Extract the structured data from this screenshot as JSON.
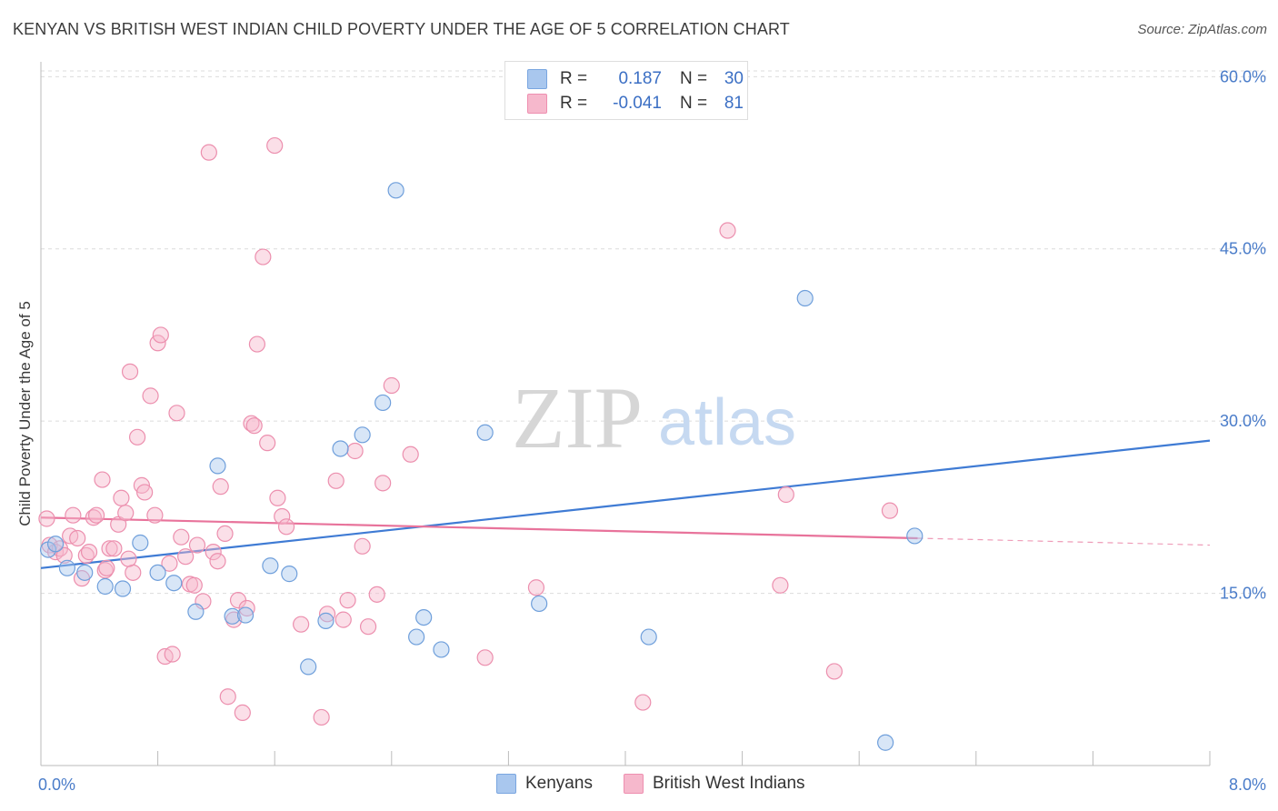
{
  "header": {
    "title": "KENYAN VS BRITISH WEST INDIAN CHILD POVERTY UNDER THE AGE OF 5 CORRELATION CHART",
    "source": "Source: ZipAtlas.com"
  },
  "watermark": {
    "zip": "ZIP",
    "atlas": "atlas"
  },
  "stats_legend": {
    "rows": [
      {
        "r_label": "R =",
        "r_value": "0.187",
        "n_label": "N =",
        "n_value": "30",
        "color": "#a9c7ee",
        "border": "#7aa6e0"
      },
      {
        "r_label": "R =",
        "r_value": "-0.041",
        "n_label": "N =",
        "n_value": "81",
        "color": "#f6b8cc",
        "border": "#ee8fb0"
      }
    ]
  },
  "colors": {
    "kenyans_fill": "#a9c7ee",
    "kenyans_stroke": "#6f9fdb",
    "kenyans_line": "#3f7bd4",
    "bwi_fill": "#f6b8cc",
    "bwi_stroke": "#ec8fae",
    "bwi_line": "#e8739b",
    "tick_text": "#4a7cc9",
    "grid": "#dcdcdc"
  },
  "chart_data": {
    "type": "scatter",
    "ylabel": "Child Poverty Under the Age of 5",
    "xlim": [
      0,
      8.0
    ],
    "ylim": [
      0,
      60.5
    ],
    "x_ticks": [
      {
        "value": 0,
        "label": "0.0%"
      },
      {
        "value": 8.0,
        "label": "8.0%"
      }
    ],
    "x_minor_ticks": [
      0.8,
      1.6,
      2.4,
      3.2,
      4.0,
      4.8,
      5.6,
      6.4,
      7.2,
      8.0
    ],
    "y_ticks": [
      {
        "value": 15,
        "label": "15.0%"
      },
      {
        "value": 30,
        "label": "30.0%"
      },
      {
        "value": 45,
        "label": "45.0%"
      },
      {
        "value": 60,
        "label": "60.0%"
      }
    ],
    "grid": true,
    "legend_position": "bottom",
    "series": [
      {
        "name": "Kenyans",
        "color": "#a9c7ee",
        "points": [
          [
            0.05,
            18.8
          ],
          [
            0.18,
            17.2
          ],
          [
            0.3,
            16.8
          ],
          [
            0.44,
            15.6
          ],
          [
            0.56,
            15.4
          ],
          [
            0.68,
            19.4
          ],
          [
            0.8,
            16.8
          ],
          [
            0.91,
            15.9
          ],
          [
            1.06,
            13.4
          ],
          [
            1.21,
            26.1
          ],
          [
            1.31,
            13.0
          ],
          [
            1.4,
            13.1
          ],
          [
            1.57,
            17.4
          ],
          [
            1.7,
            16.7
          ],
          [
            1.83,
            8.6
          ],
          [
            1.95,
            12.6
          ],
          [
            2.05,
            27.6
          ],
          [
            2.2,
            28.8
          ],
          [
            2.34,
            31.6
          ],
          [
            2.43,
            50.1
          ],
          [
            2.57,
            11.2
          ],
          [
            2.62,
            12.9
          ],
          [
            2.74,
            10.1
          ],
          [
            3.04,
            29.0
          ],
          [
            3.41,
            14.1
          ],
          [
            4.16,
            11.2
          ],
          [
            5.23,
            40.7
          ],
          [
            5.78,
            2.0
          ],
          [
            5.98,
            20.0
          ],
          [
            0.1,
            19.3
          ]
        ],
        "trend": {
          "x": [
            0,
            8.0
          ],
          "y": [
            17.2,
            28.3
          ]
        }
      },
      {
        "name": "British West Indians",
        "color": "#f6b8cc",
        "points": [
          [
            0.04,
            21.5
          ],
          [
            0.06,
            19.2
          ],
          [
            0.1,
            18.6
          ],
          [
            0.13,
            18.9
          ],
          [
            0.16,
            18.3
          ],
          [
            0.2,
            20.0
          ],
          [
            0.22,
            21.8
          ],
          [
            0.25,
            19.8
          ],
          [
            0.28,
            16.3
          ],
          [
            0.31,
            18.3
          ],
          [
            0.33,
            18.6
          ],
          [
            0.36,
            21.6
          ],
          [
            0.38,
            21.8
          ],
          [
            0.42,
            24.9
          ],
          [
            0.44,
            17.0
          ],
          [
            0.47,
            18.9
          ],
          [
            0.5,
            18.9
          ],
          [
            0.53,
            21.0
          ],
          [
            0.55,
            23.3
          ],
          [
            0.58,
            22.0
          ],
          [
            0.61,
            34.3
          ],
          [
            0.63,
            16.8
          ],
          [
            0.66,
            28.6
          ],
          [
            0.69,
            24.4
          ],
          [
            0.71,
            23.8
          ],
          [
            0.75,
            32.2
          ],
          [
            0.78,
            21.8
          ],
          [
            0.8,
            36.8
          ],
          [
            0.82,
            37.5
          ],
          [
            0.85,
            9.5
          ],
          [
            0.88,
            17.6
          ],
          [
            0.9,
            9.7
          ],
          [
            0.93,
            30.7
          ],
          [
            0.96,
            19.9
          ],
          [
            0.99,
            18.2
          ],
          [
            1.02,
            15.8
          ],
          [
            1.05,
            15.7
          ],
          [
            1.07,
            19.2
          ],
          [
            1.11,
            14.3
          ],
          [
            1.15,
            53.4
          ],
          [
            1.18,
            18.6
          ],
          [
            1.21,
            17.8
          ],
          [
            1.23,
            24.3
          ],
          [
            1.26,
            20.2
          ],
          [
            1.28,
            6.0
          ],
          [
            1.32,
            12.7
          ],
          [
            1.35,
            14.4
          ],
          [
            1.38,
            4.6
          ],
          [
            1.41,
            13.7
          ],
          [
            1.44,
            29.8
          ],
          [
            1.46,
            29.6
          ],
          [
            1.48,
            36.7
          ],
          [
            1.52,
            44.3
          ],
          [
            1.55,
            28.1
          ],
          [
            1.6,
            54.0
          ],
          [
            1.62,
            23.3
          ],
          [
            1.65,
            21.7
          ],
          [
            1.68,
            20.8
          ],
          [
            1.78,
            12.3
          ],
          [
            1.92,
            4.2
          ],
          [
            1.96,
            13.2
          ],
          [
            2.02,
            24.8
          ],
          [
            2.07,
            12.7
          ],
          [
            2.1,
            14.4
          ],
          [
            2.15,
            27.4
          ],
          [
            2.2,
            19.1
          ],
          [
            2.24,
            12.1
          ],
          [
            2.3,
            14.9
          ],
          [
            2.34,
            24.6
          ],
          [
            2.4,
            33.1
          ],
          [
            2.53,
            27.1
          ],
          [
            3.04,
            9.4
          ],
          [
            3.39,
            15.5
          ],
          [
            4.12,
            5.5
          ],
          [
            4.7,
            46.6
          ],
          [
            5.06,
            15.7
          ],
          [
            5.1,
            23.6
          ],
          [
            5.43,
            8.2
          ],
          [
            5.81,
            22.2
          ],
          [
            0.45,
            17.2
          ],
          [
            0.6,
            18.0
          ]
        ],
        "trend": {
          "x": [
            0,
            6.0
          ],
          "y": [
            21.6,
            19.8
          ]
        },
        "trend_dashed": {
          "x": [
            6.0,
            8.0
          ],
          "y": [
            19.8,
            19.2
          ]
        }
      }
    ]
  },
  "bottom_legend": {
    "items": [
      {
        "label": "Kenyans",
        "color": "#a9c7ee",
        "border": "#7aa6e0"
      },
      {
        "label": "British West Indians",
        "color": "#f6b8cc",
        "border": "#ee8fb0"
      }
    ]
  }
}
